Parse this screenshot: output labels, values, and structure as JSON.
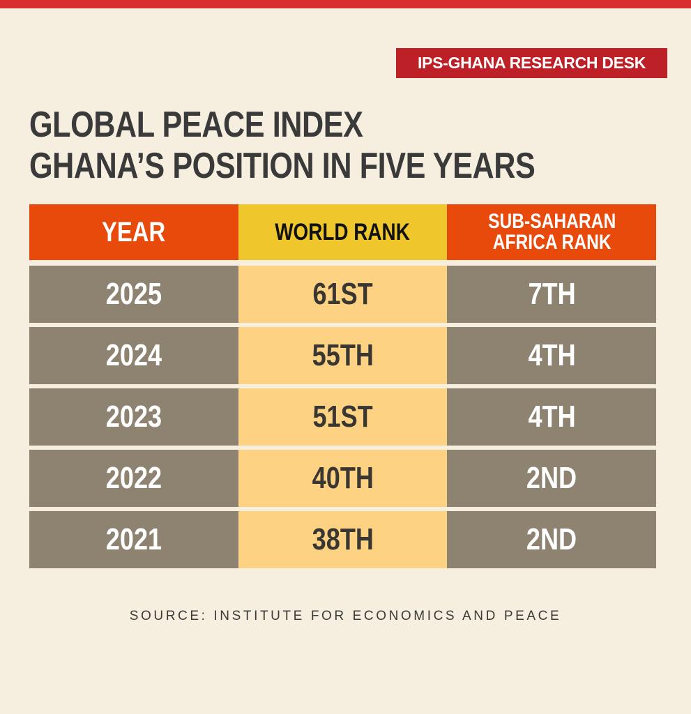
{
  "colors": {
    "top_bar": "#d92d2e",
    "badge_bg": "#bd2127",
    "background": "#f6efe0",
    "header_orange": "#e84a0c",
    "header_yellow": "#f0c62d",
    "row_gray": "#8e8370",
    "row_light_yellow": "#fdd383",
    "title_text": "#3a3a3a"
  },
  "badge": {
    "label": "IPS-GHANA RESEARCH DESK"
  },
  "title": {
    "line1": "GLOBAL PEACE INDEX",
    "line2": "GHANA’S POSITION IN FIVE YEARS"
  },
  "table": {
    "headers": {
      "year": "YEAR",
      "world_rank": "WORLD RANK",
      "ssa_rank_line1": "SUB-SAHARAN",
      "ssa_rank_line2": "AFRICA RANK"
    },
    "rows": [
      {
        "year": "2025",
        "world_rank": "61ST",
        "ssa_rank": "7TH"
      },
      {
        "year": "2024",
        "world_rank": "55TH",
        "ssa_rank": "4TH"
      },
      {
        "year": "2023",
        "world_rank": "51ST",
        "ssa_rank": "4TH"
      },
      {
        "year": "2022",
        "world_rank": "40TH",
        "ssa_rank": "2ND"
      },
      {
        "year": "2021",
        "world_rank": "38TH",
        "ssa_rank": "2ND"
      }
    ]
  },
  "source": "SOURCE: INSTITUTE FOR ECONOMICS AND PEACE",
  "chart_data": {
    "type": "table",
    "title": "GLOBAL PEACE INDEX — GHANA’S POSITION IN FIVE YEARS",
    "columns": [
      "YEAR",
      "WORLD RANK",
      "SUB-SAHARAN AFRICA RANK"
    ],
    "categories": [
      "2025",
      "2024",
      "2023",
      "2022",
      "2021"
    ],
    "series": [
      {
        "name": "World Rank",
        "values": [
          61,
          55,
          51,
          40,
          38
        ],
        "labels": [
          "61ST",
          "55TH",
          "51ST",
          "40TH",
          "38TH"
        ]
      },
      {
        "name": "Sub-Saharan Africa Rank",
        "values": [
          7,
          4,
          4,
          2,
          2
        ],
        "labels": [
          "7TH",
          "4TH",
          "4TH",
          "2ND",
          "2ND"
        ]
      }
    ],
    "source": "Institute for Economics and Peace",
    "publisher": "IPS-GHANA RESEARCH DESK"
  }
}
